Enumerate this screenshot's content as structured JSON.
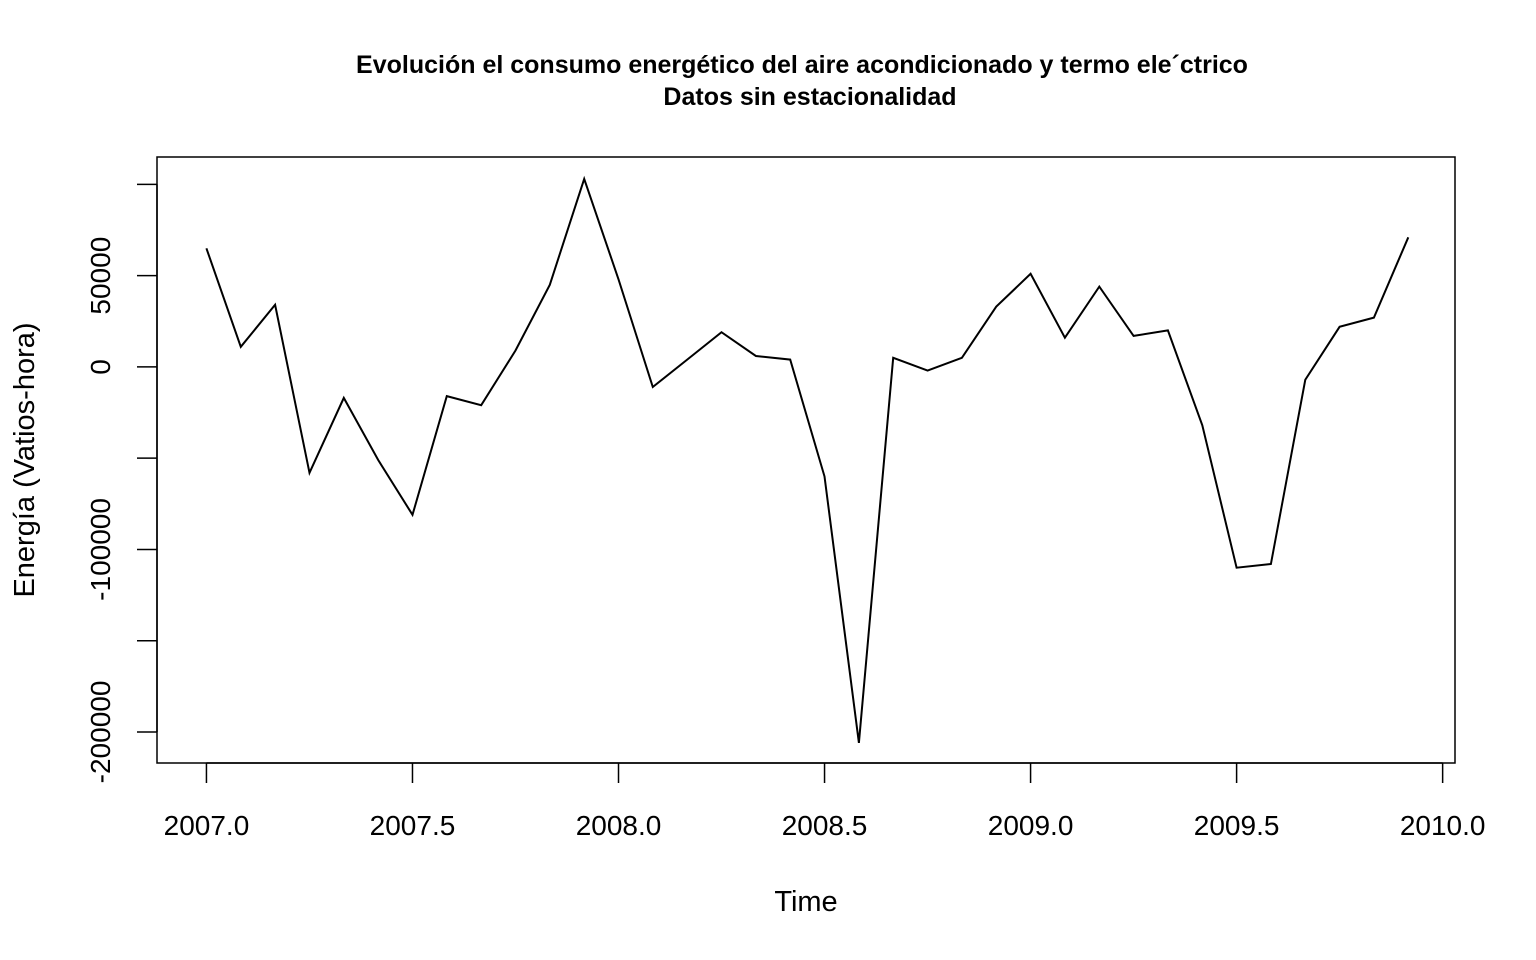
{
  "chart_data": {
    "type": "line",
    "title": "Evolución el consumo energético del aire acondicionado y termo ele´ctrico",
    "subtitle": "Datos sin estacionalidad",
    "xlabel": "Time",
    "ylabel": "Energía (Vatios-hora)",
    "xlim": [
      2006.88,
      2010.03
    ],
    "ylim": [
      -217000,
      115000
    ],
    "x_ticks": [
      2007.0,
      2007.5,
      2008.0,
      2008.5,
      2009.0,
      2009.5,
      2010.0
    ],
    "x_tick_labels": [
      "2007.0",
      "2007.5",
      "2008.0",
      "2008.5",
      "2009.0",
      "2009.5",
      "2010.0"
    ],
    "y_ticks": [
      -200000,
      -150000,
      -100000,
      -50000,
      0,
      50000,
      100000
    ],
    "y_tick_labels": [
      "-200000",
      "",
      "-100000",
      "",
      "0",
      "50000",
      ""
    ],
    "grid": false,
    "legend": "none",
    "line_color": "#000000",
    "x": [
      2007.0,
      2007.0833,
      2007.1667,
      2007.25,
      2007.3333,
      2007.4167,
      2007.5,
      2007.5833,
      2007.6667,
      2007.75,
      2007.8333,
      2007.9167,
      2008.0,
      2008.0833,
      2008.1667,
      2008.25,
      2008.3333,
      2008.4167,
      2008.5,
      2008.5833,
      2008.6667,
      2008.75,
      2008.8333,
      2008.9167,
      2009.0,
      2009.0833,
      2009.1667,
      2009.25,
      2009.3333,
      2009.4167,
      2009.5,
      2009.5833,
      2009.6667,
      2009.75,
      2009.8333,
      2009.9167
    ],
    "values": [
      65000,
      11000,
      34000,
      -58000,
      -17000,
      -51000,
      -81000,
      -16000,
      -21000,
      9000,
      45000,
      103000,
      48000,
      -11000,
      4000,
      19000,
      6000,
      4000,
      -60000,
      -206000,
      5000,
      -2000,
      5000,
      33000,
      51000,
      16000,
      44000,
      17000,
      20000,
      -32000,
      -110000,
      -108000,
      -7000,
      22000,
      27000,
      71000
    ]
  }
}
